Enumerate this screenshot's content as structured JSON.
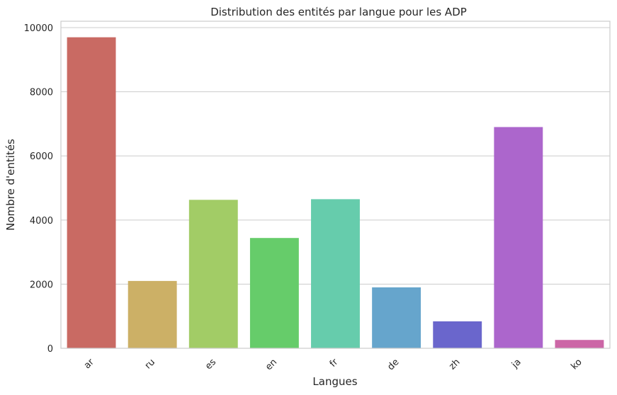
{
  "chart_data": {
    "type": "bar",
    "title": "Distribution des entités par langue pour les ADP",
    "xlabel": "Langues",
    "ylabel": "Nombre d'entités",
    "categories": [
      "ar",
      "ru",
      "es",
      "en",
      "fr",
      "de",
      "zh",
      "ja",
      "ko"
    ],
    "values": [
      9700,
      2100,
      4630,
      3440,
      4650,
      1900,
      840,
      6900,
      260
    ],
    "colors": [
      "#c96a63",
      "#ccb066",
      "#a2cc66",
      "#66cc6a",
      "#66ccac",
      "#66a5cc",
      "#6a66cc",
      "#ac66cc",
      "#cc66a6"
    ],
    "ylim": [
      0,
      10200
    ],
    "yticks": [
      0,
      2000,
      4000,
      6000,
      8000,
      10000
    ],
    "ytick_labels": [
      "0",
      "2000",
      "4000",
      "6000",
      "8000",
      "10000"
    ],
    "grid": "y",
    "legend": "none"
  }
}
